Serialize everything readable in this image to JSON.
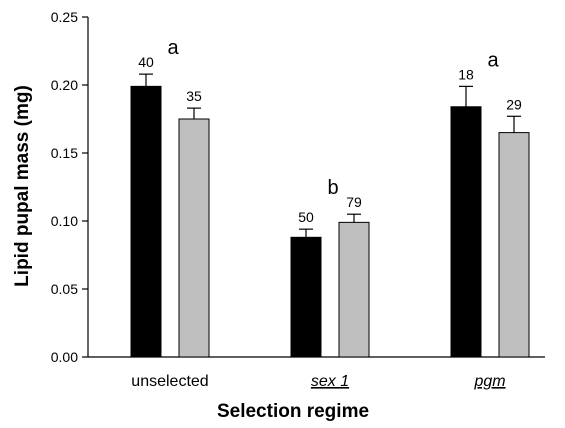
{
  "chart_data": {
    "type": "bar",
    "xlabel": "Selection regime",
    "ylabel": "Lipid pupal mass (mg)",
    "ylim": [
      0,
      0.25
    ],
    "yticks": [
      "0.00",
      "0.05",
      "0.10",
      "0.15",
      "0.20",
      "0.25"
    ],
    "yticks_values": [
      0,
      0.05,
      0.1,
      0.15,
      0.2,
      0.25
    ],
    "categories": [
      "unselected",
      "sex 1",
      "pgm"
    ],
    "category_italic": [
      false,
      true,
      true
    ],
    "series": [
      {
        "color": "#000000",
        "values": [
          0.199,
          0.088,
          0.184
        ],
        "errors": [
          0.009,
          0.006,
          0.015
        ],
        "n_labels": [
          "40",
          "50",
          "18"
        ]
      },
      {
        "color": "#bfbfbf",
        "values": [
          0.175,
          0.099,
          0.165
        ],
        "errors": [
          0.008,
          0.006,
          0.012
        ],
        "n_labels": [
          "35",
          "79",
          "29"
        ]
      }
    ],
    "group_letters": [
      "a",
      "b",
      "a"
    ],
    "legend": "none",
    "grid": false
  }
}
